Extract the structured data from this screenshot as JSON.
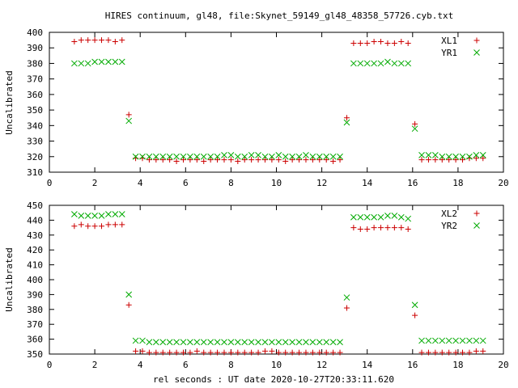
{
  "chart_data": {
    "type": "scatter",
    "title": "HIRES continuum, gl48, file:Skynet_59149_gl48_48358_57726.cyb.txt",
    "xlabel": "rel seconds : UT date 2020-10-27T20:33:11.620",
    "panels": [
      {
        "ylabel": "Uncalibrated",
        "xlim": [
          0,
          20
        ],
        "ylim": [
          310,
          400
        ],
        "xticks": [
          "0",
          "2",
          "4",
          "6",
          "8",
          "10",
          "12",
          "14",
          "16",
          "18",
          "20"
        ],
        "yticks": [
          "310",
          "320",
          "330",
          "340",
          "350",
          "360",
          "370",
          "380",
          "390",
          "400"
        ],
        "series": [
          {
            "name": "XL1",
            "marker": "plus",
            "color": "#cc0000",
            "x": [
              1.1,
              1.4,
              1.7,
              2.0,
              2.3,
              2.6,
              2.9,
              3.2,
              3.5,
              3.8,
              4.1,
              4.4,
              4.7,
              5.0,
              5.3,
              5.6,
              5.9,
              6.2,
              6.5,
              6.8,
              7.1,
              7.4,
              7.7,
              8.0,
              8.3,
              8.6,
              8.9,
              9.2,
              9.5,
              9.8,
              10.1,
              10.4,
              10.7,
              11.0,
              11.3,
              11.6,
              11.9,
              12.2,
              12.5,
              12.8,
              13.1,
              13.4,
              13.7,
              14.0,
              14.3,
              14.6,
              14.9,
              15.2,
              15.5,
              15.8,
              16.1,
              16.4,
              16.7,
              17.0,
              17.3,
              17.6,
              17.9,
              18.2,
              18.5,
              18.8,
              19.1
            ],
            "y": [
              394,
              395,
              395,
              395,
              395,
              395,
              394,
              395,
              347,
              319,
              319,
              318,
              318,
              318,
              318,
              317,
              318,
              318,
              318,
              317,
              318,
              318,
              318,
              318,
              317,
              318,
              318,
              318,
              318,
              318,
              318,
              317,
              318,
              318,
              318,
              318,
              318,
              318,
              317,
              318,
              345,
              393,
              393,
              393,
              394,
              394,
              393,
              393,
              394,
              393,
              341,
              318,
              318,
              318,
              318,
              318,
              318,
              318,
              319,
              319,
              319
            ]
          },
          {
            "name": "YR1",
            "marker": "cross",
            "color": "#00aa00",
            "x": [
              1.1,
              1.4,
              1.7,
              2.0,
              2.3,
              2.6,
              2.9,
              3.2,
              3.5,
              3.8,
              4.1,
              4.4,
              4.7,
              5.0,
              5.3,
              5.6,
              5.9,
              6.2,
              6.5,
              6.8,
              7.1,
              7.4,
              7.7,
              8.0,
              8.3,
              8.6,
              8.9,
              9.2,
              9.5,
              9.8,
              10.1,
              10.4,
              10.7,
              11.0,
              11.3,
              11.6,
              11.9,
              12.2,
              12.5,
              12.8,
              13.1,
              13.4,
              13.7,
              14.0,
              14.3,
              14.6,
              14.9,
              15.2,
              15.5,
              15.8,
              16.1,
              16.4,
              16.7,
              17.0,
              17.3,
              17.6,
              17.9,
              18.2,
              18.5,
              18.8,
              19.1
            ],
            "y": [
              380,
              380,
              380,
              381,
              381,
              381,
              381,
              381,
              343,
              320,
              320,
              320,
              320,
              320,
              320,
              320,
              320,
              320,
              320,
              320,
              320,
              320,
              321,
              321,
              320,
              320,
              321,
              321,
              320,
              320,
              321,
              320,
              320,
              320,
              321,
              320,
              320,
              320,
              320,
              320,
              342,
              380,
              380,
              380,
              380,
              380,
              381,
              380,
              380,
              380,
              338,
              321,
              321,
              321,
              320,
              320,
              320,
              320,
              320,
              321,
              321
            ]
          }
        ]
      },
      {
        "ylabel": "Uncalibrated",
        "xlim": [
          0,
          20
        ],
        "ylim": [
          350,
          450
        ],
        "xticks": [
          "0",
          "2",
          "4",
          "6",
          "8",
          "10",
          "12",
          "14",
          "16",
          "18",
          "20"
        ],
        "yticks": [
          "350",
          "360",
          "370",
          "380",
          "390",
          "400",
          "410",
          "420",
          "430",
          "440",
          "450"
        ],
        "series": [
          {
            "name": "XL2",
            "marker": "plus",
            "color": "#cc0000",
            "x": [
              1.1,
              1.4,
              1.7,
              2.0,
              2.3,
              2.6,
              2.9,
              3.2,
              3.5,
              3.8,
              4.1,
              4.4,
              4.7,
              5.0,
              5.3,
              5.6,
              5.9,
              6.2,
              6.5,
              6.8,
              7.1,
              7.4,
              7.7,
              8.0,
              8.3,
              8.6,
              8.9,
              9.2,
              9.5,
              9.8,
              10.1,
              10.4,
              10.7,
              11.0,
              11.3,
              11.6,
              11.9,
              12.2,
              12.5,
              12.8,
              13.1,
              13.4,
              13.7,
              14.0,
              14.3,
              14.6,
              14.9,
              15.2,
              15.5,
              15.8,
              16.1,
              16.4,
              16.7,
              17.0,
              17.3,
              17.6,
              17.9,
              18.2,
              18.5,
              18.8,
              19.1
            ],
            "y": [
              436,
              437,
              436,
              436,
              436,
              437,
              437,
              437,
              383,
              352,
              352,
              351,
              351,
              351,
              351,
              351,
              351,
              351,
              352,
              351,
              351,
              351,
              351,
              351,
              351,
              351,
              351,
              351,
              352,
              352,
              351,
              351,
              351,
              351,
              351,
              351,
              351,
              351,
              351,
              351,
              381,
              435,
              434,
              434,
              435,
              435,
              435,
              435,
              435,
              434,
              376,
              351,
              351,
              351,
              351,
              351,
              351,
              351,
              351,
              352,
              352
            ]
          },
          {
            "name": "YR2",
            "marker": "cross",
            "color": "#00aa00",
            "x": [
              1.1,
              1.4,
              1.7,
              2.0,
              2.3,
              2.6,
              2.9,
              3.2,
              3.5,
              3.8,
              4.1,
              4.4,
              4.7,
              5.0,
              5.3,
              5.6,
              5.9,
              6.2,
              6.5,
              6.8,
              7.1,
              7.4,
              7.7,
              8.0,
              8.3,
              8.6,
              8.9,
              9.2,
              9.5,
              9.8,
              10.1,
              10.4,
              10.7,
              11.0,
              11.3,
              11.6,
              11.9,
              12.2,
              12.5,
              12.8,
              13.1,
              13.4,
              13.7,
              14.0,
              14.3,
              14.6,
              14.9,
              15.2,
              15.5,
              15.8,
              16.1,
              16.4,
              16.7,
              17.0,
              17.3,
              17.6,
              17.9,
              18.2,
              18.5,
              18.8,
              19.1
            ],
            "y": [
              444,
              443,
              443,
              443,
              443,
              444,
              444,
              444,
              390,
              359,
              359,
              358,
              358,
              358,
              358,
              358,
              358,
              358,
              358,
              358,
              358,
              358,
              358,
              358,
              358,
              358,
              358,
              358,
              358,
              358,
              358,
              358,
              358,
              358,
              358,
              358,
              358,
              358,
              358,
              358,
              388,
              442,
              442,
              442,
              442,
              442,
              443,
              443,
              442,
              441,
              383,
              359,
              359,
              359,
              359,
              359,
              359,
              359,
              359,
              359,
              359
            ]
          }
        ]
      }
    ]
  }
}
